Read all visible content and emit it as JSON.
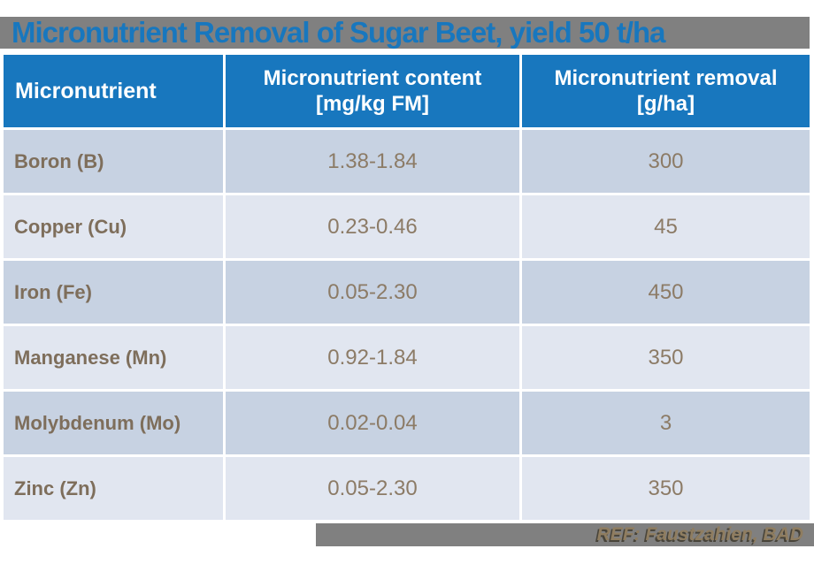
{
  "title": "Micronutrient Removal of Sugar Beet, yield 50 t/ha",
  "table": {
    "header": {
      "micronutrient": "Micronutrient",
      "content_line1": "Micronutrient content",
      "content_line2": "[mg/kg FM]",
      "removal_line1": "Micronutrient removal",
      "removal_line2": "[g/ha]"
    },
    "rows": [
      {
        "nutrient": "Boron (B)",
        "content": "1.38-1.84",
        "removal": "300"
      },
      {
        "nutrient": "Copper (Cu)",
        "content": "0.23-0.46",
        "removal": "45"
      },
      {
        "nutrient": "Iron (Fe)",
        "content": "0.05-2.30",
        "removal": "450"
      },
      {
        "nutrient": "Manganese (Mn)",
        "content": "0.92-1.84",
        "removal": "350"
      },
      {
        "nutrient": "Molybdenum (Mo)",
        "content": "0.02-0.04",
        "removal": "3"
      },
      {
        "nutrient": "Zinc (Zn)",
        "content": "0.05-2.30",
        "removal": "350"
      }
    ]
  },
  "footer": {
    "reference": "REF: Faustzahien, BAD"
  },
  "colors": {
    "accent_blue": "#1877BE",
    "title_band_gray": "#808080",
    "footer_gray": "#808080",
    "row_dark": "#C7D2E2",
    "row_light": "#E1E6F0",
    "label_text_brown": "#7E6E5B",
    "data_text_brown": "#8C7B66",
    "footer_text_tan": "#8F7D60"
  }
}
